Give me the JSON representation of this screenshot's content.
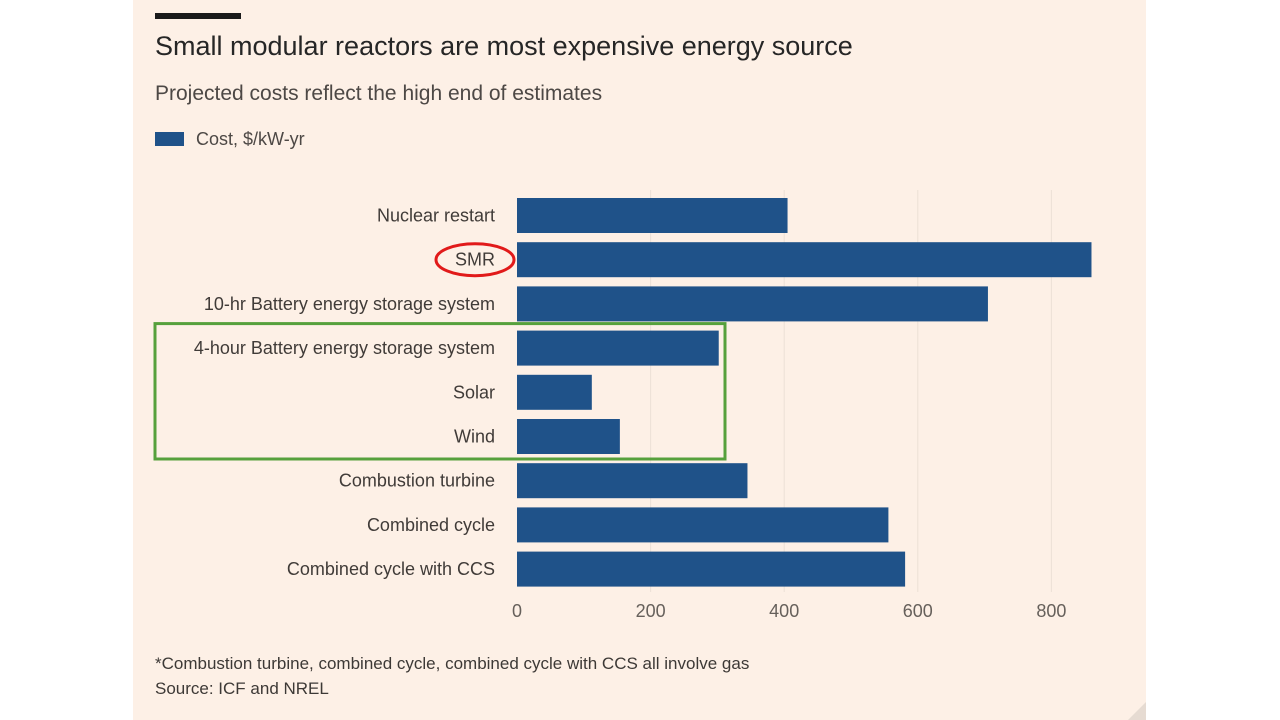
{
  "title": "Small modular reactors are most expensive energy source",
  "subtitle": "Projected costs reflect the high end of estimates",
  "legend_label": "Cost, $/kW-yr",
  "footnote": "*Combustion turbine, combined cycle, combined cycle with CCS all involve gas",
  "source": "Source: ICF and NREL",
  "colors": {
    "bar": "#1f5289",
    "background": "#fdf0e6",
    "highlight_circle": "#e11a1a",
    "highlight_box": "#56a03c",
    "grid": "#ece0d6"
  },
  "chart_data": {
    "type": "bar",
    "orientation": "horizontal",
    "categories": [
      "Nuclear restart",
      "SMR",
      "10-hr Battery energy storage system",
      "4-hour Battery energy storage system",
      "Solar",
      "Wind",
      "Combustion turbine",
      "Combined cycle",
      "Combined cycle with CCS"
    ],
    "values": [
      405,
      860,
      705,
      302,
      112,
      154,
      345,
      556,
      581
    ],
    "xlabel": "",
    "ylabel": "",
    "xlim": [
      0,
      900
    ],
    "xticks": [
      0,
      200,
      400,
      600,
      800
    ],
    "grid": true,
    "legend": "top-left",
    "annotations": {
      "circled_category": "SMR",
      "boxed_categories": [
        "4-hour Battery energy storage system",
        "Solar",
        "Wind"
      ]
    }
  }
}
